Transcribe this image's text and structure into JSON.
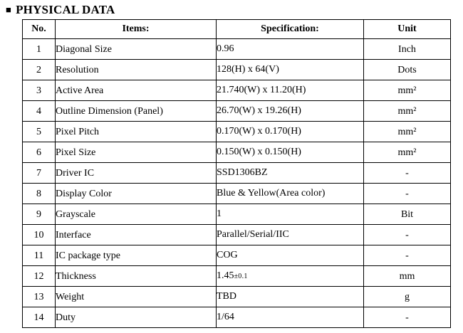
{
  "document": {
    "section_marker": "■",
    "section_title": "PHYSICAL DATA"
  },
  "table": {
    "headers": [
      "No.",
      "Items:",
      "Specification:",
      "Unit"
    ],
    "rows": [
      {
        "no": "1",
        "item": "Diagonal Size",
        "spec": "0.96",
        "unit": "Inch"
      },
      {
        "no": "2",
        "item": "Resolution",
        "spec": "128(H) x 64(V)",
        "unit": "Dots"
      },
      {
        "no": "3",
        "item": "Active Area",
        "spec": "21.740(W) x 11.20(H)",
        "unit": "mm²"
      },
      {
        "no": "4",
        "item": "Outline Dimension (Panel)",
        "spec": "26.70(W) x 19.26(H)",
        "unit": "mm²"
      },
      {
        "no": "5",
        "item": "Pixel Pitch",
        "spec": "0.170(W) x 0.170(H)",
        "unit": "mm²"
      },
      {
        "no": "6",
        "item": "Pixel Size",
        "spec": "0.150(W) x 0.150(H)",
        "unit": "mm²"
      },
      {
        "no": "7",
        "item": "Driver IC",
        "spec": "SSD1306BZ",
        "unit": "-"
      },
      {
        "no": "8",
        "item": "Display Color",
        "spec": "Blue & Yellow(Area color)",
        "unit": "-"
      },
      {
        "no": "9",
        "item": "Grayscale",
        "spec": "1",
        "unit": "Bit"
      },
      {
        "no": "10",
        "item": "Interface",
        "spec": "Parallel/Serial/IIC",
        "unit": "-"
      },
      {
        "no": "11",
        "item": "IC package type",
        "spec": "COG",
        "unit": "-"
      },
      {
        "no": "12",
        "item": "Thickness",
        "spec": "1.45",
        "tol": "±0.1",
        "unit": "mm"
      },
      {
        "no": "13",
        "item": "Weight",
        "spec": "TBD",
        "unit": "g"
      },
      {
        "no": "14",
        "item": "Duty",
        "spec": "1/64",
        "unit": "-"
      }
    ]
  }
}
